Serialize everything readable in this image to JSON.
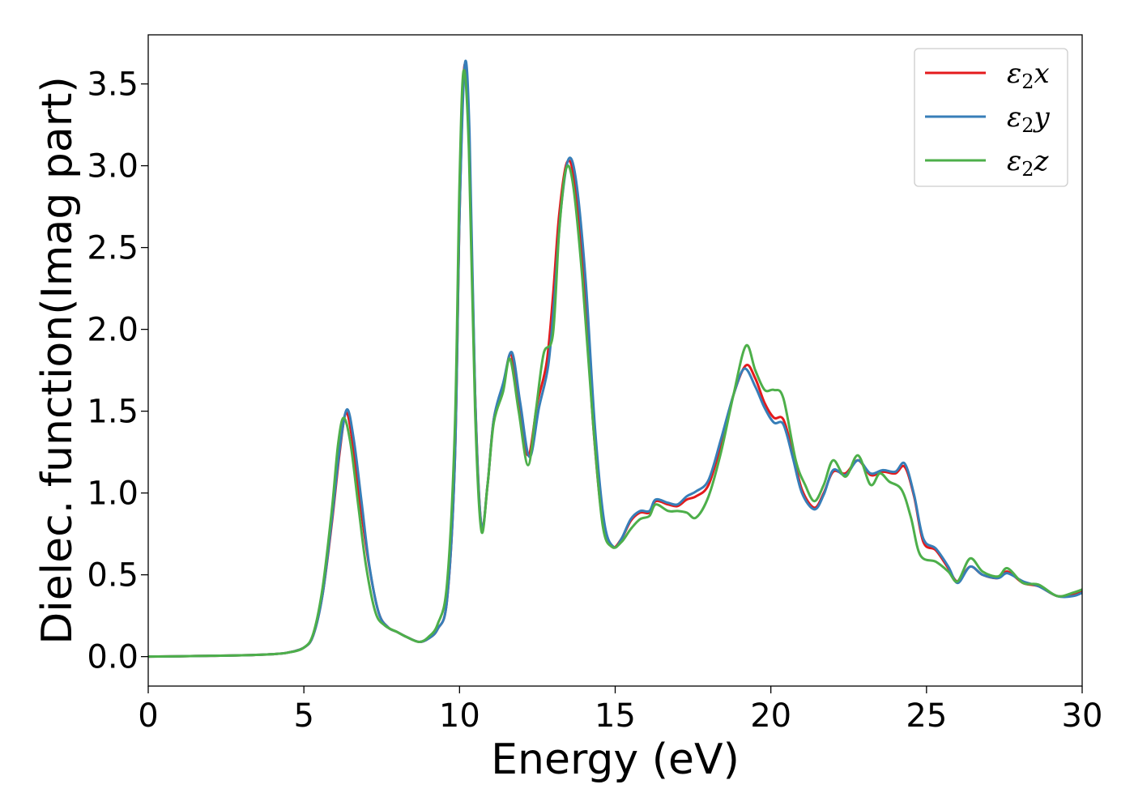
{
  "chart_data": {
    "type": "line",
    "title": "",
    "xlabel": "Energy (eV)",
    "ylabel": "Dielec. function(Imag part)",
    "xlim": [
      0,
      30
    ],
    "ylim": [
      -0.18,
      3.8
    ],
    "xticks": [
      0,
      5,
      10,
      15,
      20,
      25,
      30
    ],
    "yticks": [
      0.0,
      0.5,
      1.0,
      1.5,
      2.0,
      2.5,
      3.0,
      3.5
    ],
    "xtick_labels": [
      "0",
      "5",
      "10",
      "15",
      "20",
      "25",
      "30"
    ],
    "ytick_labels": [
      "0.0",
      "0.5",
      "1.0",
      "1.5",
      "2.0",
      "2.5",
      "3.0",
      "3.5"
    ],
    "grid": false,
    "legend_position": "top-right",
    "series": [
      {
        "name": "ε2x",
        "legend_symbol": "ε",
        "legend_subscript": "2",
        "legend_suffix": "x",
        "color": "#e41a1c",
        "points": [
          [
            0,
            0
          ],
          [
            1,
            0.002
          ],
          [
            2,
            0.005
          ],
          [
            3,
            0.008
          ],
          [
            4,
            0.015
          ],
          [
            4.5,
            0.025
          ],
          [
            5,
            0.055
          ],
          [
            5.3,
            0.13
          ],
          [
            5.6,
            0.38
          ],
          [
            5.9,
            0.82
          ],
          [
            6.15,
            1.25
          ],
          [
            6.35,
            1.49
          ],
          [
            6.55,
            1.33
          ],
          [
            6.8,
            0.95
          ],
          [
            7.1,
            0.55
          ],
          [
            7.4,
            0.27
          ],
          [
            7.7,
            0.18
          ],
          [
            8.0,
            0.15
          ],
          [
            8.3,
            0.12
          ],
          [
            8.7,
            0.09
          ],
          [
            9.0,
            0.11
          ],
          [
            9.3,
            0.17
          ],
          [
            9.6,
            0.35
          ],
          [
            9.85,
            1.2
          ],
          [
            10.0,
            2.7
          ],
          [
            10.15,
            3.6
          ],
          [
            10.3,
            3.2
          ],
          [
            10.5,
            1.6
          ],
          [
            10.7,
            0.8
          ],
          [
            10.9,
            1.05
          ],
          [
            11.1,
            1.45
          ],
          [
            11.4,
            1.65
          ],
          [
            11.65,
            1.85
          ],
          [
            11.9,
            1.55
          ],
          [
            12.2,
            1.23
          ],
          [
            12.5,
            1.55
          ],
          [
            12.8,
            1.8
          ],
          [
            13.0,
            2.2
          ],
          [
            13.2,
            2.7
          ],
          [
            13.45,
            3.02
          ],
          [
            13.7,
            2.9
          ],
          [
            14.0,
            2.3
          ],
          [
            14.3,
            1.4
          ],
          [
            14.6,
            0.82
          ],
          [
            14.9,
            0.67
          ],
          [
            15.2,
            0.72
          ],
          [
            15.5,
            0.83
          ],
          [
            15.8,
            0.88
          ],
          [
            16.1,
            0.88
          ],
          [
            16.3,
            0.95
          ],
          [
            16.7,
            0.93
          ],
          [
            17.0,
            0.92
          ],
          [
            17.3,
            0.96
          ],
          [
            17.6,
            0.98
          ],
          [
            18.0,
            1.05
          ],
          [
            18.4,
            1.3
          ],
          [
            18.8,
            1.6
          ],
          [
            19.2,
            1.78
          ],
          [
            19.5,
            1.7
          ],
          [
            19.8,
            1.55
          ],
          [
            20.1,
            1.46
          ],
          [
            20.4,
            1.45
          ],
          [
            20.7,
            1.25
          ],
          [
            21.0,
            1.02
          ],
          [
            21.4,
            0.91
          ],
          [
            21.7,
            1.0
          ],
          [
            22.0,
            1.13
          ],
          [
            22.4,
            1.12
          ],
          [
            22.8,
            1.2
          ],
          [
            23.2,
            1.11
          ],
          [
            23.6,
            1.13
          ],
          [
            24.0,
            1.12
          ],
          [
            24.3,
            1.16
          ],
          [
            24.6,
            0.98
          ],
          [
            24.9,
            0.7
          ],
          [
            25.3,
            0.65
          ],
          [
            25.7,
            0.54
          ],
          [
            26.0,
            0.46
          ],
          [
            26.4,
            0.55
          ],
          [
            26.8,
            0.5
          ],
          [
            27.3,
            0.48
          ],
          [
            27.6,
            0.52
          ],
          [
            28.1,
            0.45
          ],
          [
            28.6,
            0.43
          ],
          [
            29.2,
            0.37
          ],
          [
            29.7,
            0.38
          ],
          [
            30,
            0.4
          ]
        ]
      },
      {
        "name": "ε2y",
        "legend_symbol": "ε",
        "legend_subscript": "2",
        "legend_suffix": "y",
        "color": "#377eb8",
        "points": [
          [
            0,
            0
          ],
          [
            1,
            0.002
          ],
          [
            2,
            0.005
          ],
          [
            3,
            0.008
          ],
          [
            4,
            0.015
          ],
          [
            4.5,
            0.025
          ],
          [
            5,
            0.055
          ],
          [
            5.3,
            0.13
          ],
          [
            5.6,
            0.38
          ],
          [
            5.9,
            0.84
          ],
          [
            6.15,
            1.27
          ],
          [
            6.38,
            1.51
          ],
          [
            6.6,
            1.33
          ],
          [
            6.85,
            0.95
          ],
          [
            7.1,
            0.56
          ],
          [
            7.4,
            0.27
          ],
          [
            7.7,
            0.18
          ],
          [
            8.0,
            0.15
          ],
          [
            8.3,
            0.12
          ],
          [
            8.7,
            0.09
          ],
          [
            9.0,
            0.11
          ],
          [
            9.3,
            0.17
          ],
          [
            9.6,
            0.35
          ],
          [
            9.85,
            1.2
          ],
          [
            10.0,
            2.7
          ],
          [
            10.17,
            3.62
          ],
          [
            10.32,
            3.2
          ],
          [
            10.5,
            1.6
          ],
          [
            10.7,
            0.8
          ],
          [
            10.9,
            1.05
          ],
          [
            11.1,
            1.45
          ],
          [
            11.4,
            1.67
          ],
          [
            11.68,
            1.86
          ],
          [
            11.95,
            1.55
          ],
          [
            12.25,
            1.22
          ],
          [
            12.55,
            1.52
          ],
          [
            12.85,
            1.78
          ],
          [
            13.05,
            2.2
          ],
          [
            13.25,
            2.72
          ],
          [
            13.5,
            3.04
          ],
          [
            13.75,
            2.9
          ],
          [
            14.05,
            2.3
          ],
          [
            14.35,
            1.4
          ],
          [
            14.65,
            0.82
          ],
          [
            14.95,
            0.67
          ],
          [
            15.2,
            0.72
          ],
          [
            15.5,
            0.84
          ],
          [
            15.8,
            0.89
          ],
          [
            16.1,
            0.89
          ],
          [
            16.3,
            0.96
          ],
          [
            16.7,
            0.94
          ],
          [
            17.0,
            0.93
          ],
          [
            17.3,
            0.98
          ],
          [
            17.6,
            1.01
          ],
          [
            18.0,
            1.08
          ],
          [
            18.4,
            1.33
          ],
          [
            18.8,
            1.6
          ],
          [
            19.15,
            1.76
          ],
          [
            19.5,
            1.65
          ],
          [
            19.8,
            1.52
          ],
          [
            20.1,
            1.43
          ],
          [
            20.4,
            1.42
          ],
          [
            20.7,
            1.22
          ],
          [
            21.0,
            1.0
          ],
          [
            21.4,
            0.9
          ],
          [
            21.7,
            0.99
          ],
          [
            22.0,
            1.14
          ],
          [
            22.4,
            1.11
          ],
          [
            22.8,
            1.2
          ],
          [
            23.2,
            1.12
          ],
          [
            23.6,
            1.14
          ],
          [
            24.0,
            1.13
          ],
          [
            24.3,
            1.18
          ],
          [
            24.6,
            0.99
          ],
          [
            24.9,
            0.72
          ],
          [
            25.3,
            0.66
          ],
          [
            25.7,
            0.55
          ],
          [
            26.0,
            0.45
          ],
          [
            26.4,
            0.55
          ],
          [
            26.8,
            0.5
          ],
          [
            27.3,
            0.48
          ],
          [
            27.6,
            0.51
          ],
          [
            28.1,
            0.46
          ],
          [
            28.6,
            0.43
          ],
          [
            29.2,
            0.37
          ],
          [
            29.7,
            0.37
          ],
          [
            30,
            0.39
          ]
        ]
      },
      {
        "name": "ε2z",
        "legend_symbol": "ε",
        "legend_subscript": "2",
        "legend_suffix": "z",
        "color": "#4daf4a",
        "points": [
          [
            0,
            0
          ],
          [
            1,
            0.002
          ],
          [
            2,
            0.005
          ],
          [
            3,
            0.008
          ],
          [
            4,
            0.015
          ],
          [
            4.5,
            0.025
          ],
          [
            5,
            0.055
          ],
          [
            5.3,
            0.14
          ],
          [
            5.6,
            0.42
          ],
          [
            5.9,
            0.9
          ],
          [
            6.1,
            1.3
          ],
          [
            6.28,
            1.46
          ],
          [
            6.5,
            1.3
          ],
          [
            6.75,
            0.92
          ],
          [
            7.0,
            0.55
          ],
          [
            7.3,
            0.27
          ],
          [
            7.6,
            0.19
          ],
          [
            8.0,
            0.15
          ],
          [
            8.3,
            0.12
          ],
          [
            8.7,
            0.09
          ],
          [
            9.0,
            0.12
          ],
          [
            9.3,
            0.2
          ],
          [
            9.6,
            0.45
          ],
          [
            9.85,
            1.4
          ],
          [
            10.0,
            2.9
          ],
          [
            10.13,
            3.58
          ],
          [
            10.3,
            3.1
          ],
          [
            10.5,
            1.5
          ],
          [
            10.7,
            0.77
          ],
          [
            10.9,
            1.05
          ],
          [
            11.1,
            1.43
          ],
          [
            11.4,
            1.62
          ],
          [
            11.62,
            1.82
          ],
          [
            11.9,
            1.5
          ],
          [
            12.2,
            1.17
          ],
          [
            12.45,
            1.5
          ],
          [
            12.7,
            1.85
          ],
          [
            13.0,
            1.97
          ],
          [
            13.2,
            2.6
          ],
          [
            13.42,
            2.98
          ],
          [
            13.65,
            2.88
          ],
          [
            13.95,
            2.3
          ],
          [
            14.3,
            1.4
          ],
          [
            14.6,
            0.8
          ],
          [
            14.9,
            0.67
          ],
          [
            15.2,
            0.7
          ],
          [
            15.5,
            0.78
          ],
          [
            15.8,
            0.84
          ],
          [
            16.1,
            0.86
          ],
          [
            16.3,
            0.93
          ],
          [
            16.7,
            0.89
          ],
          [
            17.0,
            0.89
          ],
          [
            17.3,
            0.88
          ],
          [
            17.6,
            0.85
          ],
          [
            18.0,
            0.98
          ],
          [
            18.4,
            1.25
          ],
          [
            18.8,
            1.6
          ],
          [
            19.2,
            1.9
          ],
          [
            19.5,
            1.75
          ],
          [
            19.8,
            1.63
          ],
          [
            20.1,
            1.63
          ],
          [
            20.4,
            1.58
          ],
          [
            20.8,
            1.2
          ],
          [
            21.1,
            1.05
          ],
          [
            21.4,
            0.95
          ],
          [
            21.7,
            1.05
          ],
          [
            22.0,
            1.2
          ],
          [
            22.4,
            1.1
          ],
          [
            22.8,
            1.23
          ],
          [
            23.2,
            1.05
          ],
          [
            23.5,
            1.12
          ],
          [
            23.8,
            1.07
          ],
          [
            24.2,
            1.02
          ],
          [
            24.5,
            0.85
          ],
          [
            24.8,
            0.62
          ],
          [
            25.3,
            0.58
          ],
          [
            25.7,
            0.52
          ],
          [
            26.0,
            0.46
          ],
          [
            26.4,
            0.6
          ],
          [
            26.8,
            0.52
          ],
          [
            27.3,
            0.49
          ],
          [
            27.6,
            0.54
          ],
          [
            28.1,
            0.45
          ],
          [
            28.6,
            0.44
          ],
          [
            29.2,
            0.37
          ],
          [
            29.7,
            0.39
          ],
          [
            30,
            0.41
          ]
        ]
      }
    ]
  }
}
